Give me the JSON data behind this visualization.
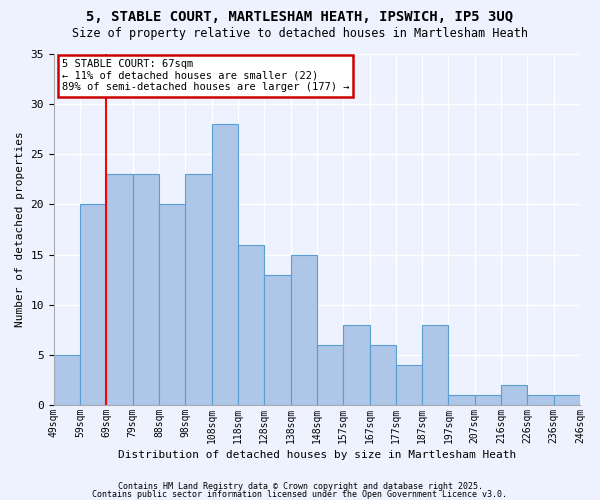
{
  "title": "5, STABLE COURT, MARTLESHAM HEATH, IPSWICH, IP5 3UQ",
  "subtitle": "Size of property relative to detached houses in Martlesham Heath",
  "xlabel": "Distribution of detached houses by size in Martlesham Heath",
  "ylabel": "Number of detached properties",
  "categories": [
    "49sqm",
    "59sqm",
    "69sqm",
    "79sqm",
    "88sqm",
    "98sqm",
    "108sqm",
    "118sqm",
    "128sqm",
    "138sqm",
    "148sqm",
    "157sqm",
    "167sqm",
    "177sqm",
    "187sqm",
    "197sqm",
    "207sqm",
    "216sqm",
    "226sqm",
    "236sqm",
    "246sqm"
  ],
  "values": [
    5,
    20,
    23,
    23,
    20,
    23,
    28,
    16,
    13,
    15,
    6,
    8,
    6,
    4,
    8,
    1,
    1,
    2,
    1,
    1
  ],
  "bar_color": "#aec6e8",
  "bar_edge_color": "#5a9fd4",
  "background_color": "#eef2ff",
  "grid_color": "#ffffff",
  "red_line_x": 1.5,
  "annotation_text": "5 STABLE COURT: 67sqm\n← 11% of detached houses are smaller (22)\n89% of semi-detached houses are larger (177) →",
  "annotation_box_color": "#ffffff",
  "annotation_box_edge_color": "#cc0000",
  "footer_line1": "Contains HM Land Registry data © Crown copyright and database right 2025.",
  "footer_line2": "Contains public sector information licensed under the Open Government Licence v3.0.",
  "ylim": [
    0,
    35
  ],
  "yticks": [
    0,
    5,
    10,
    15,
    20,
    25,
    30,
    35
  ]
}
